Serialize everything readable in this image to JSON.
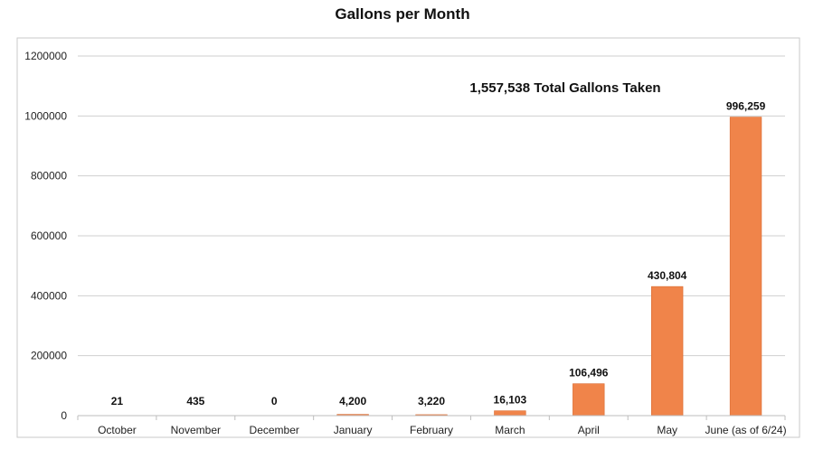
{
  "chart_data": {
    "type": "bar",
    "title": "Gallons per Month",
    "annotation": "1,557,538 Total Gallons Taken",
    "categories": [
      "October",
      "November",
      "December",
      "January",
      "February",
      "March",
      "April",
      "May",
      "June (as of 6/24)"
    ],
    "values": [
      21,
      435,
      0,
      4200,
      3220,
      16103,
      106496,
      430804,
      996259
    ],
    "value_labels": [
      "21",
      "435",
      "0",
      "4,200",
      "3,220",
      "16,103",
      "106,496",
      "430,804",
      "996,259"
    ],
    "ylim": [
      0,
      1200000
    ],
    "yticks": [
      0,
      200000,
      400000,
      600000,
      800000,
      1000000,
      1200000
    ],
    "xlabel": "",
    "ylabel": "",
    "grid": true,
    "legend": "none",
    "bar_color": "#f0844a",
    "bar_edge_color": "#d96a30"
  }
}
